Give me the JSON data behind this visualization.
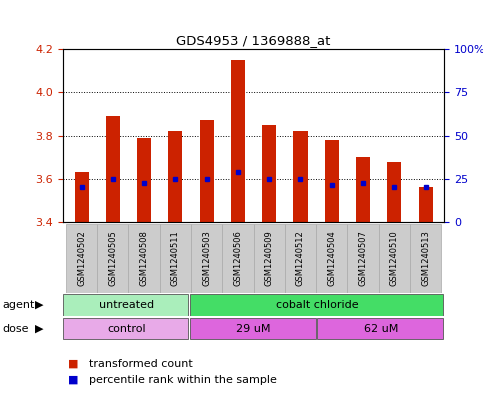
{
  "title": "GDS4953 / 1369888_at",
  "samples": [
    "GSM1240502",
    "GSM1240505",
    "GSM1240508",
    "GSM1240511",
    "GSM1240503",
    "GSM1240506",
    "GSM1240509",
    "GSM1240512",
    "GSM1240504",
    "GSM1240507",
    "GSM1240510",
    "GSM1240513"
  ],
  "transformed_counts": [
    3.63,
    3.89,
    3.79,
    3.82,
    3.87,
    4.15,
    3.85,
    3.82,
    3.78,
    3.7,
    3.68,
    3.56
  ],
  "percentile_ranks": [
    3.56,
    3.6,
    3.58,
    3.6,
    3.6,
    3.63,
    3.6,
    3.6,
    3.57,
    3.58,
    3.56,
    3.56
  ],
  "bar_bottom": 3.4,
  "ylim": [
    3.4,
    4.2
  ],
  "yticks_left": [
    3.4,
    3.6,
    3.8,
    4.0,
    4.2
  ],
  "yticks_right": [
    0,
    25,
    50,
    75,
    100
  ],
  "yticks_right_labels": [
    "0",
    "25",
    "50",
    "75",
    "100%"
  ],
  "bar_color": "#cc2200",
  "percentile_color": "#0000cc",
  "agent_groups": [
    {
      "label": "untreated",
      "start": 0,
      "end": 4,
      "color": "#aaeebb"
    },
    {
      "label": "cobalt chloride",
      "start": 4,
      "end": 12,
      "color": "#44dd66"
    }
  ],
  "dose_groups": [
    {
      "label": "control",
      "start": 0,
      "end": 4,
      "color": "#e8aae8"
    },
    {
      "label": "29 uM",
      "start": 4,
      "end": 8,
      "color": "#dd66dd"
    },
    {
      "label": "62 uM",
      "start": 8,
      "end": 12,
      "color": "#dd66dd"
    }
  ],
  "tick_color_left": "#cc2200",
  "tick_color_right": "#0000cc",
  "sample_bg_color": "#cccccc",
  "legend_items": [
    {
      "color": "#cc2200",
      "label": "transformed count"
    },
    {
      "color": "#0000cc",
      "label": "percentile rank within the sample"
    }
  ]
}
